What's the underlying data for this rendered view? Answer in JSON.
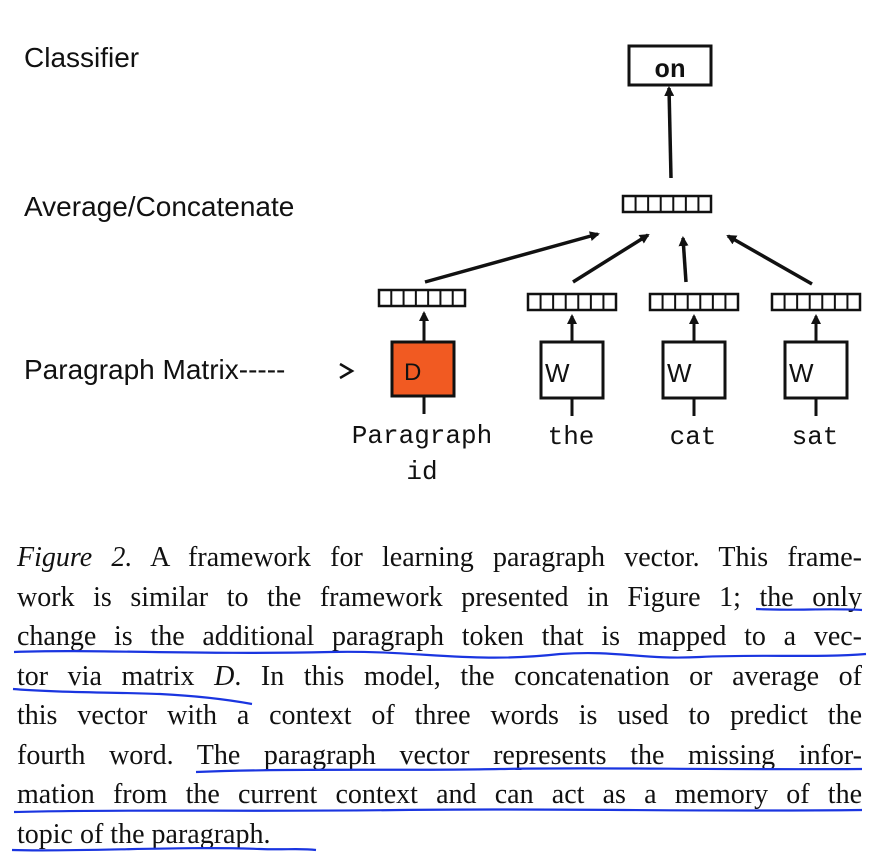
{
  "diagram": {
    "labels": {
      "classifier": "Classifier",
      "average_concatenate": "Average/Concatenate",
      "paragraph_matrix": "Paragraph Matrix-----"
    },
    "output_word": "on",
    "paragraph_box": "D",
    "word_box": "W",
    "inputs": {
      "paragraph_line1": "Paragraph",
      "paragraph_line2": "id",
      "word1": "the",
      "word2": "cat",
      "word3": "sat"
    },
    "colors": {
      "paragraph_box_fill": "#f15a22",
      "annotation_ink": "#1a35e0"
    }
  },
  "caption": {
    "figure_label": "Figure 2.",
    "lines": [
      " A framework for learning paragraph vector. This frame-",
      "work is similar to the framework presented in Figure 1; the only",
      "change is the additional paragraph token that is mapped to a vec-",
      "tor via matrix ",
      "D",
      ". In this model, the concatenation or average of",
      "this vector with a context of three words is used to predict the",
      "fourth word. The paragraph vector represents the missing infor-",
      "mation from the current context and can act as a memory of the",
      "topic of the paragraph."
    ]
  }
}
